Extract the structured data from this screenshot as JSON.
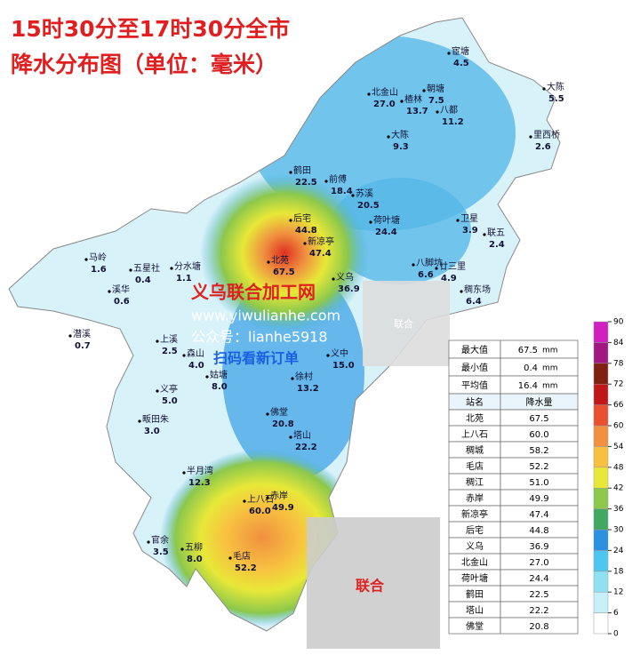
{
  "title_lines": [
    "15时30分至17时30分全市",
    "降水分布图（单位：毫米）"
  ],
  "stations": [
    {
      "name": "宦塘",
      "value": "4.5"
    },
    {
      "name": "大陈",
      "value": "5.5"
    },
    {
      "name": "北金山",
      "value": "27.0"
    },
    {
      "name": "朝塘",
      "value": "7.5"
    },
    {
      "name": "楂林",
      "value": "13.7"
    },
    {
      "name": "八都",
      "value": "11.2"
    },
    {
      "name": "大陈",
      "value": "9.3"
    },
    {
      "name": "里西桥",
      "value": "2.6"
    },
    {
      "name": "鹤田",
      "value": "22.5"
    },
    {
      "name": "前傅",
      "value": "18.4"
    },
    {
      "name": "苏溪",
      "value": "20.5"
    },
    {
      "name": "荷叶塘",
      "value": "24.4"
    },
    {
      "name": "卫星",
      "value": "3.9"
    },
    {
      "name": "联五",
      "value": "2.4"
    },
    {
      "name": "后宅",
      "value": "44.8"
    },
    {
      "name": "新凉亭",
      "value": "47.4"
    },
    {
      "name": "马岭",
      "value": "1.6"
    },
    {
      "name": "五星社",
      "value": "0.4"
    },
    {
      "name": "分水塘",
      "value": "1.1"
    },
    {
      "name": "北苑",
      "value": "67.5"
    },
    {
      "name": "八脚坑",
      "value": "6.6"
    },
    {
      "name": "廿三里",
      "value": "4.9"
    },
    {
      "name": "稠东场",
      "value": "6.4"
    },
    {
      "name": "溪华",
      "value": "0.6"
    },
    {
      "name": "潜溪",
      "value": "0.7"
    },
    {
      "name": "上溪",
      "value": "2.5"
    },
    {
      "name": "森山",
      "value": "4.0"
    },
    {
      "name": "义中",
      "value": "15.0"
    },
    {
      "name": "义乌",
      "value": "36.9"
    },
    {
      "name": "姑塘",
      "value": "8.0"
    },
    {
      "name": "徐村",
      "value": "13.2"
    },
    {
      "name": "义亭",
      "value": "5.0"
    },
    {
      "name": "佛堂",
      "value": "20.8"
    },
    {
      "name": "畈田朱",
      "value": "3.0"
    },
    {
      "name": "塔山",
      "value": "22.2"
    },
    {
      "name": "半月湾",
      "value": "12.3"
    },
    {
      "name": "上八石",
      "value": "60.0"
    },
    {
      "name": "赤岸",
      "value": "49.9"
    },
    {
      "name": "官余",
      "value": "3.5"
    },
    {
      "name": "五柳",
      "value": "8.0"
    },
    {
      "name": "毛店",
      "value": "52.2"
    }
  ],
  "stats": {
    "unit": "mm",
    "rows": [
      [
        "最大值",
        "67.5"
      ],
      [
        "最小值",
        "0.4"
      ],
      [
        "平均值",
        "16.4"
      ]
    ]
  },
  "ranking": {
    "header": [
      "站名",
      "降水量"
    ],
    "rows": [
      [
        "北苑",
        "67.5"
      ],
      [
        "上八石",
        "60.0"
      ],
      [
        "稠城",
        "58.2"
      ],
      [
        "毛店",
        "52.2"
      ],
      [
        "稠江",
        "51.0"
      ],
      [
        "赤岸",
        "49.9"
      ],
      [
        "新凉亭",
        "47.4"
      ],
      [
        "后宅",
        "44.8"
      ],
      [
        "义乌",
        "36.9"
      ],
      [
        "北金山",
        "27.0"
      ],
      [
        "荷叶塘",
        "24.4"
      ],
      [
        "鹤田",
        "22.5"
      ],
      [
        "塔山",
        "22.2"
      ],
      [
        "佛堂",
        "20.8"
      ]
    ]
  },
  "legend": {
    "ticks": [
      0,
      6,
      12,
      18,
      24,
      30,
      36,
      42,
      48,
      54,
      60,
      66,
      72,
      78,
      84,
      90
    ],
    "colors": [
      "#ffffff",
      "#c8f0f8",
      "#8fe0f0",
      "#4cc8f0",
      "#2a90e0",
      "#40a860",
      "#8cc84c",
      "#e8e838",
      "#f8c040",
      "#f09040",
      "#e85030",
      "#c01818",
      "#802010",
      "#a01880",
      "#d020c0"
    ]
  },
  "watermark": [
    "义乌联合加工网",
    "www.yiwulianhe.com",
    "公众号：lianhe5918",
    "扫码看新订单",
    "联合",
    "联合"
  ]
}
